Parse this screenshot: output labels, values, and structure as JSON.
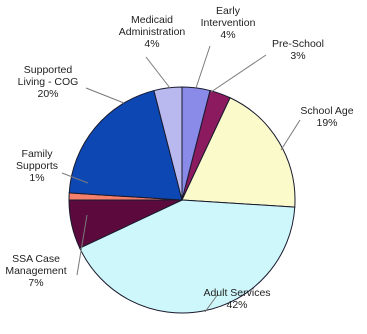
{
  "chart_data": {
    "type": "pie",
    "slices": [
      {
        "label_lines": [
          "Early",
          "Intervention"
        ],
        "pct_text": "4%",
        "value": 4,
        "color": "#8a8ae8"
      },
      {
        "label_lines": [
          "Pre-School"
        ],
        "pct_text": "3%",
        "value": 3,
        "color": "#8b1a5e"
      },
      {
        "label_lines": [
          "School Age"
        ],
        "pct_text": "19%",
        "value": 19,
        "color": "#fafacb"
      },
      {
        "label_lines": [
          "Adult Services"
        ],
        "pct_text": "42%",
        "value": 42,
        "color": "#cdf7fb"
      },
      {
        "label_lines": [
          "SSA Case",
          "Management"
        ],
        "pct_text": "7%",
        "value": 7,
        "color": "#5c0a3e"
      },
      {
        "label_lines": [
          "Family",
          "Supports"
        ],
        "pct_text": "1%",
        "value": 1,
        "color": "#f47f6b"
      },
      {
        "label_lines": [
          "Supported",
          "Living - COG"
        ],
        "pct_text": "20%",
        "value": 20,
        "color": "#0d47b3"
      },
      {
        "label_lines": [
          "Medicaid",
          "Administration"
        ],
        "pct_text": "4%",
        "value": 4,
        "color": "#b9b9f0"
      }
    ]
  }
}
